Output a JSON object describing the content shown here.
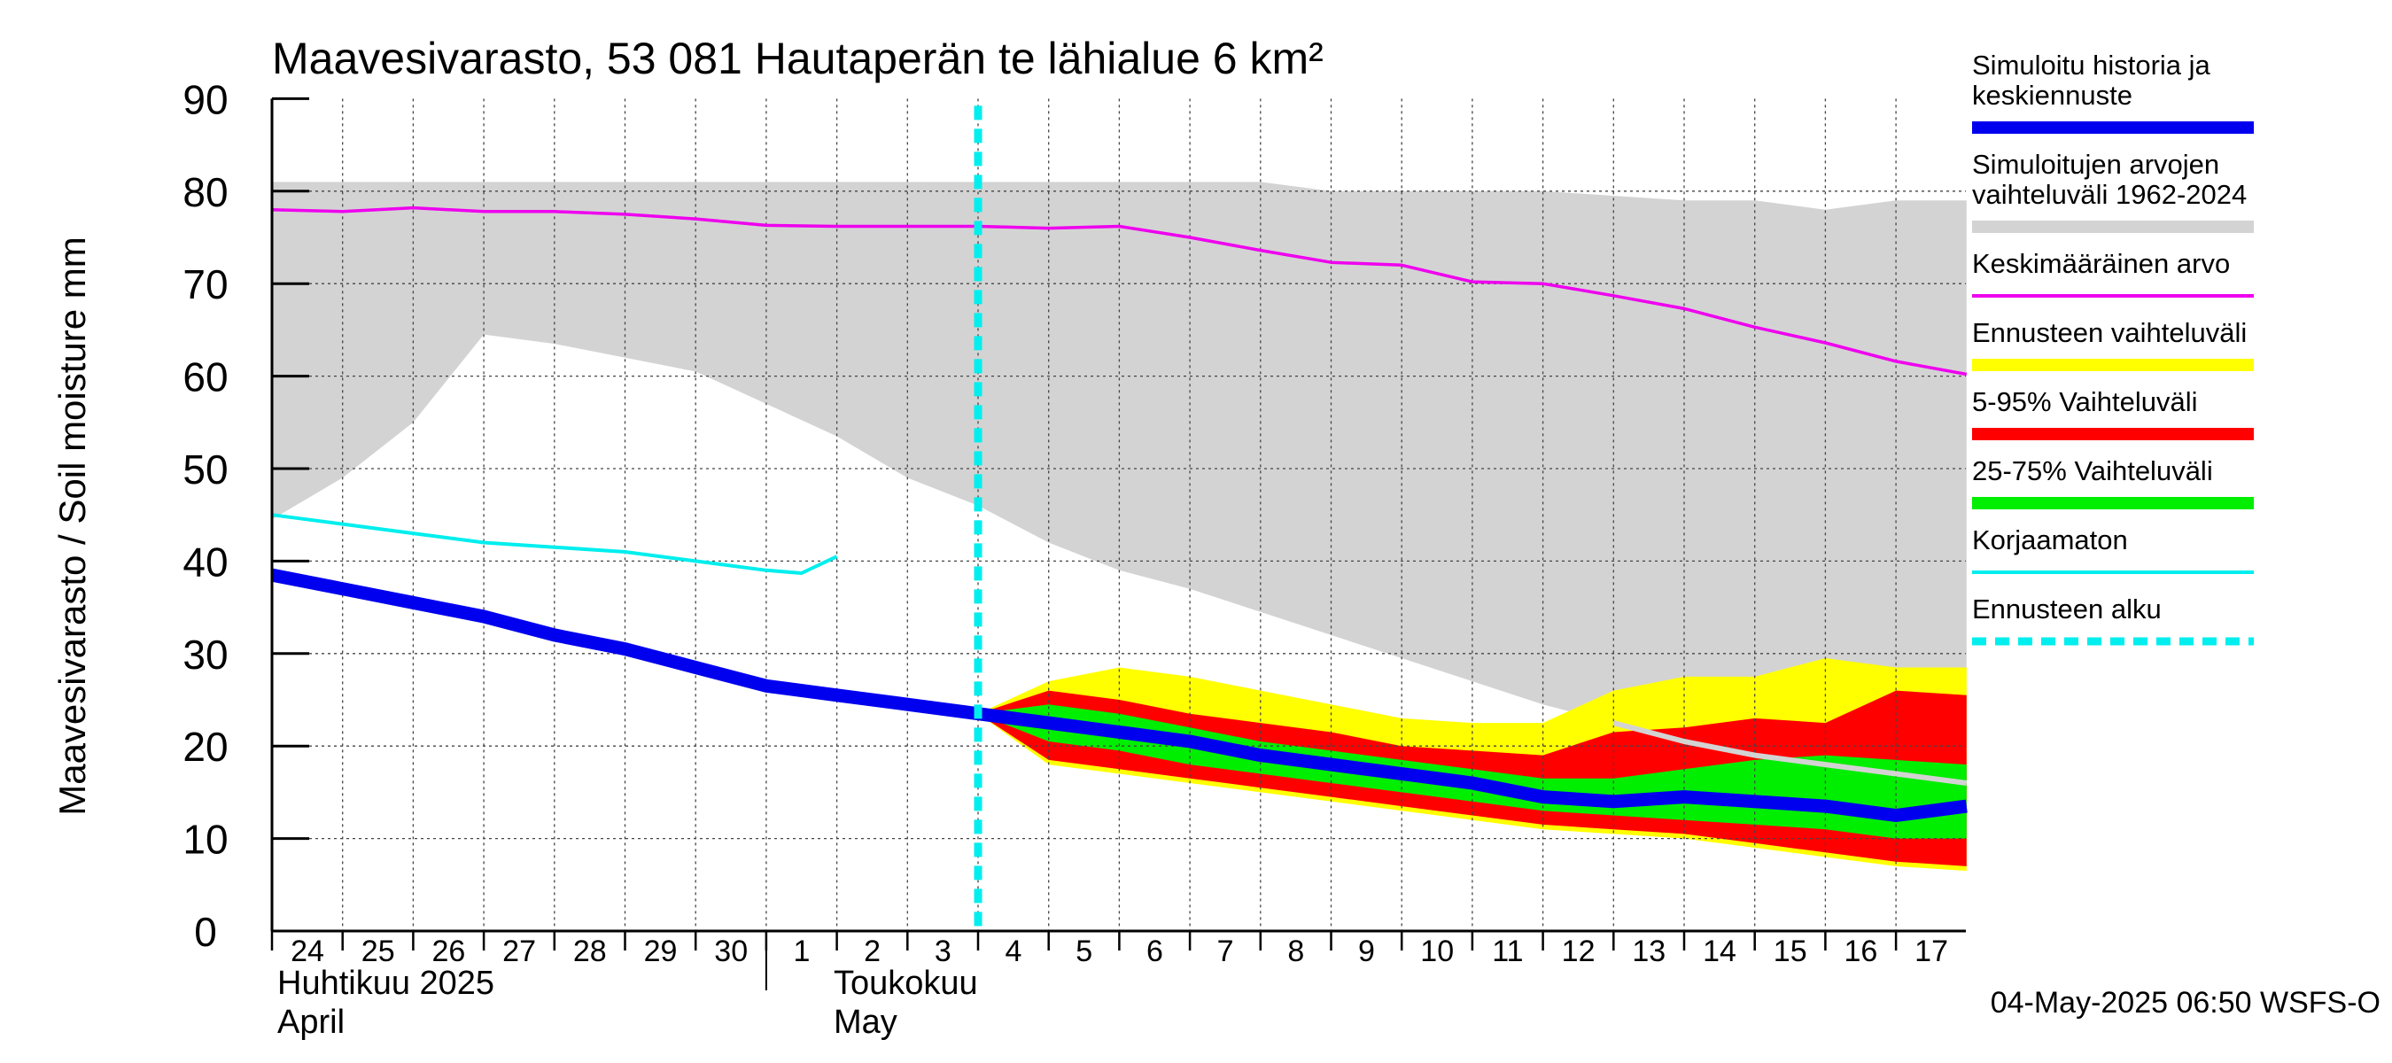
{
  "chart_data": {
    "type": "area",
    "title": "Maavesivarasto, 53 081 Hautaperän te lähialue 6 km²",
    "ylabel": "Maavesivarasto / Soil moisture   mm",
    "ylim": [
      0,
      90
    ],
    "yticks": [
      0,
      10,
      20,
      30,
      40,
      50,
      60,
      70,
      80,
      90
    ],
    "grid": true,
    "legend_position": "right",
    "x_day_labels": [
      "24",
      "25",
      "26",
      "27",
      "28",
      "29",
      "30",
      "1",
      "2",
      "3",
      "4",
      "5",
      "6",
      "7",
      "8",
      "9",
      "10",
      "11",
      "12",
      "13",
      "14",
      "15",
      "16",
      "17"
    ],
    "month_labels": [
      {
        "fi": "Huhtikuu  2025",
        "en": "April"
      },
      {
        "fi": "Toukokuu",
        "en": "May"
      }
    ],
    "forecast_start_x": 10,
    "timestamp": "04-May-2025 06:50 WSFS-O",
    "colors": {
      "history_range": "#d3d3d3",
      "mean": "#ee00ee",
      "forecast_range": "#ffff00",
      "p5_95": "#ff0000",
      "p25_75": "#00ee00",
      "simulated": "#0000ee",
      "uncorrected": "#00eeee",
      "forecast_start": "#00eeee",
      "history_continuation": "#d3d3d3"
    },
    "series": [
      {
        "id": "history_range",
        "name": "Simuloitujen arvojen vaihteluväli 1962-2024",
        "x": [
          0,
          1,
          2,
          3,
          4,
          5,
          6,
          7,
          8,
          9,
          10,
          11,
          12,
          13,
          14,
          15,
          16,
          17,
          18,
          19,
          20,
          21,
          22,
          23,
          24
        ],
        "upper": [
          81,
          81,
          81,
          81,
          81,
          81,
          81,
          81,
          81,
          81,
          81,
          81,
          81,
          81,
          81,
          80,
          80,
          80,
          80,
          79.5,
          79,
          79,
          78,
          79,
          79
        ],
        "lower": [
          44.5,
          49,
          55,
          64.5,
          63.5,
          62,
          60.5,
          57,
          53.5,
          49,
          46,
          42,
          39,
          37,
          34.5,
          32,
          29.5,
          27,
          24.5,
          22.5,
          20.5,
          19,
          18,
          17,
          16
        ]
      },
      {
        "id": "forecast_range",
        "name": "Ennusteen vaihteluväli",
        "x": [
          10,
          11,
          12,
          13,
          14,
          15,
          16,
          17,
          18,
          19,
          20,
          21,
          22,
          23,
          24
        ],
        "upper": [
          23.5,
          27,
          28.5,
          27.5,
          26,
          24.5,
          23,
          22.5,
          22.5,
          26,
          27.5,
          27.5,
          29.5,
          28.5,
          28.5
        ],
        "lower": [
          23.5,
          18,
          17,
          16,
          15,
          14,
          13,
          12,
          11,
          10.5,
          10,
          9,
          8,
          7,
          6.5
        ]
      },
      {
        "id": "p5_95",
        "name": "5-95% Vaihteluväli",
        "x": [
          10,
          11,
          12,
          13,
          14,
          15,
          16,
          17,
          18,
          19,
          20,
          21,
          22,
          23,
          24
        ],
        "upper": [
          23.5,
          26,
          25,
          23.5,
          22.5,
          21.5,
          20,
          19.5,
          19,
          21.5,
          22,
          23,
          22.5,
          26,
          25.5
        ],
        "lower": [
          23.5,
          18.5,
          17.5,
          16.5,
          15.5,
          14.5,
          13.5,
          12.5,
          11.5,
          11,
          10.5,
          9.5,
          8.5,
          7.5,
          7
        ]
      },
      {
        "id": "p25_75",
        "name": "25-75% Vaihteluväli",
        "x": [
          10,
          11,
          12,
          13,
          14,
          15,
          16,
          17,
          18,
          19,
          20,
          21,
          22,
          23,
          24
        ],
        "upper": [
          23.5,
          24.5,
          23.5,
          22,
          20.5,
          19.5,
          18.5,
          17.5,
          16.5,
          16.5,
          17.5,
          18.5,
          19,
          18.5,
          18
        ],
        "lower": [
          23.5,
          20.5,
          19.5,
          18,
          17,
          16,
          15,
          14,
          13,
          12.5,
          12,
          11.5,
          11,
          10,
          10
        ]
      },
      {
        "id": "mean",
        "name": "Keskimääräinen arvo",
        "x": [
          0,
          1,
          2,
          3,
          4,
          5,
          6,
          7,
          8,
          9,
          10,
          11,
          12,
          13,
          14,
          15,
          16,
          17,
          18,
          19,
          20,
          21,
          22,
          23,
          24
        ],
        "values": [
          78,
          77.8,
          78.2,
          77.8,
          77.8,
          77.5,
          77,
          76.3,
          76.2,
          76.2,
          76.2,
          76,
          76.2,
          75,
          73.6,
          72.3,
          72,
          70.2,
          70,
          68.7,
          67.3,
          65.3,
          63.6,
          61.6,
          60.2
        ]
      },
      {
        "id": "history_continuation",
        "name": "",
        "x": [
          19,
          20,
          21,
          22,
          23,
          24
        ],
        "values": [
          22.5,
          20.5,
          19,
          18,
          17,
          16
        ]
      },
      {
        "id": "uncorrected",
        "name": "Korjaamaton",
        "x": [
          0,
          1,
          2,
          3,
          4,
          5,
          6,
          7,
          7.5,
          8
        ],
        "values": [
          45,
          44,
          43,
          42,
          41.5,
          41,
          40,
          39,
          38.7,
          40.5
        ]
      },
      {
        "id": "simulated",
        "name": "Simuloitu historia ja keskiennuste",
        "x": [
          0,
          1,
          2,
          3,
          4,
          5,
          6,
          7,
          8,
          9,
          10,
          11,
          12,
          13,
          14,
          15,
          16,
          17,
          18,
          19,
          20,
          21,
          22,
          23,
          24
        ],
        "values": [
          38.5,
          37,
          35.5,
          34,
          32,
          30.5,
          28.5,
          26.5,
          25.5,
          24.5,
          23.5,
          22.5,
          21.5,
          20.5,
          19,
          18,
          17,
          16,
          14.5,
          14,
          14.5,
          14,
          13.5,
          12.5,
          13.5
        ]
      }
    ],
    "legend": [
      {
        "label": "Simuloitu historia ja\nkeskiennuste",
        "color": "#0000ee",
        "style": "thick"
      },
      {
        "label": "Simuloitujen arvojen\nvaihteluväli 1962-2024",
        "color": "#d3d3d3",
        "style": "thick"
      },
      {
        "label": "Keskimääräinen arvo",
        "color": "#ee00ee",
        "style": "thin"
      },
      {
        "label": "Ennusteen vaihteluväli",
        "color": "#ffff00",
        "style": "thick"
      },
      {
        "label": "5-95% Vaihteluväli",
        "color": "#ff0000",
        "style": "thick"
      },
      {
        "label": "25-75% Vaihteluväli",
        "color": "#00ee00",
        "style": "thick"
      },
      {
        "label": "Korjaamaton",
        "color": "#00eeee",
        "style": "thin"
      },
      {
        "label": "Ennusteen alku",
        "color": "#00eeee",
        "style": "dashed"
      }
    ]
  }
}
